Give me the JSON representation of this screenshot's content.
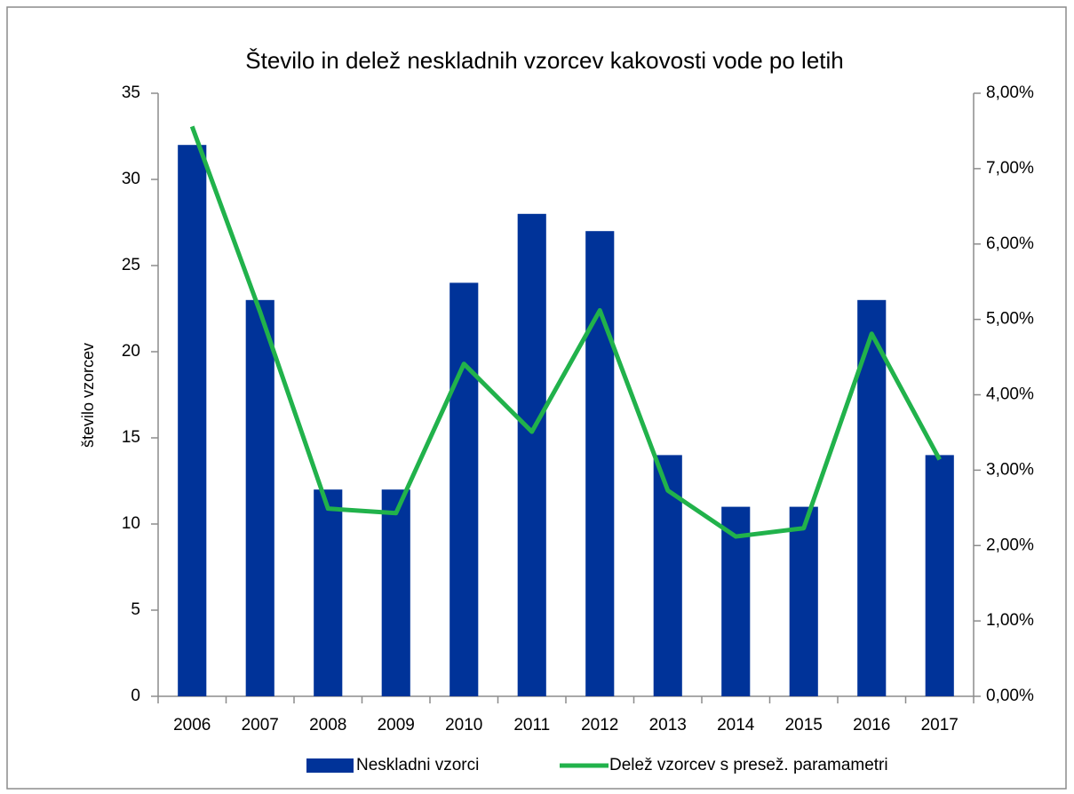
{
  "chart_data": {
    "type": "bar_line",
    "title": "Število in delež neskladnih vzorcev kakovosti vode po letih",
    "y_label": "število vzorcev",
    "categories": [
      "2006",
      "2007",
      "2008",
      "2009",
      "2010",
      "2011",
      "2012",
      "2013",
      "2014",
      "2015",
      "2016",
      "2017"
    ],
    "series": [
      {
        "name": "Neskladni vzorci",
        "type": "bar",
        "color": "#003399",
        "values": [
          32,
          23,
          12,
          12,
          24,
          28,
          27,
          14,
          11,
          11,
          23,
          14
        ]
      },
      {
        "name": "Delež vzorcev s presež. paramametri",
        "type": "line",
        "axis": "y2",
        "color": "#21b24b",
        "values": [
          7.56,
          5.1,
          2.49,
          2.43,
          4.41,
          3.51,
          5.12,
          2.73,
          2.12,
          2.23,
          4.81,
          3.14
        ]
      }
    ],
    "ylim": [
      0,
      35
    ],
    "yticks": [
      0,
      5,
      10,
      15,
      20,
      25,
      30,
      35
    ],
    "y2lim": [
      0,
      8
    ],
    "y2ticks": [
      {
        "value": 0,
        "label": "0,00%"
      },
      {
        "value": 1,
        "label": "1,00%"
      },
      {
        "value": 2,
        "label": "2,00%"
      },
      {
        "value": 3,
        "label": "3,00%"
      },
      {
        "value": 4,
        "label": "4,00%"
      },
      {
        "value": 5,
        "label": "5,00%"
      },
      {
        "value": 6,
        "label": "6,00%"
      },
      {
        "value": 7,
        "label": "7,00%"
      },
      {
        "value": 8,
        "label": "8,00%"
      }
    ],
    "legend": "bottom",
    "grid": false
  }
}
